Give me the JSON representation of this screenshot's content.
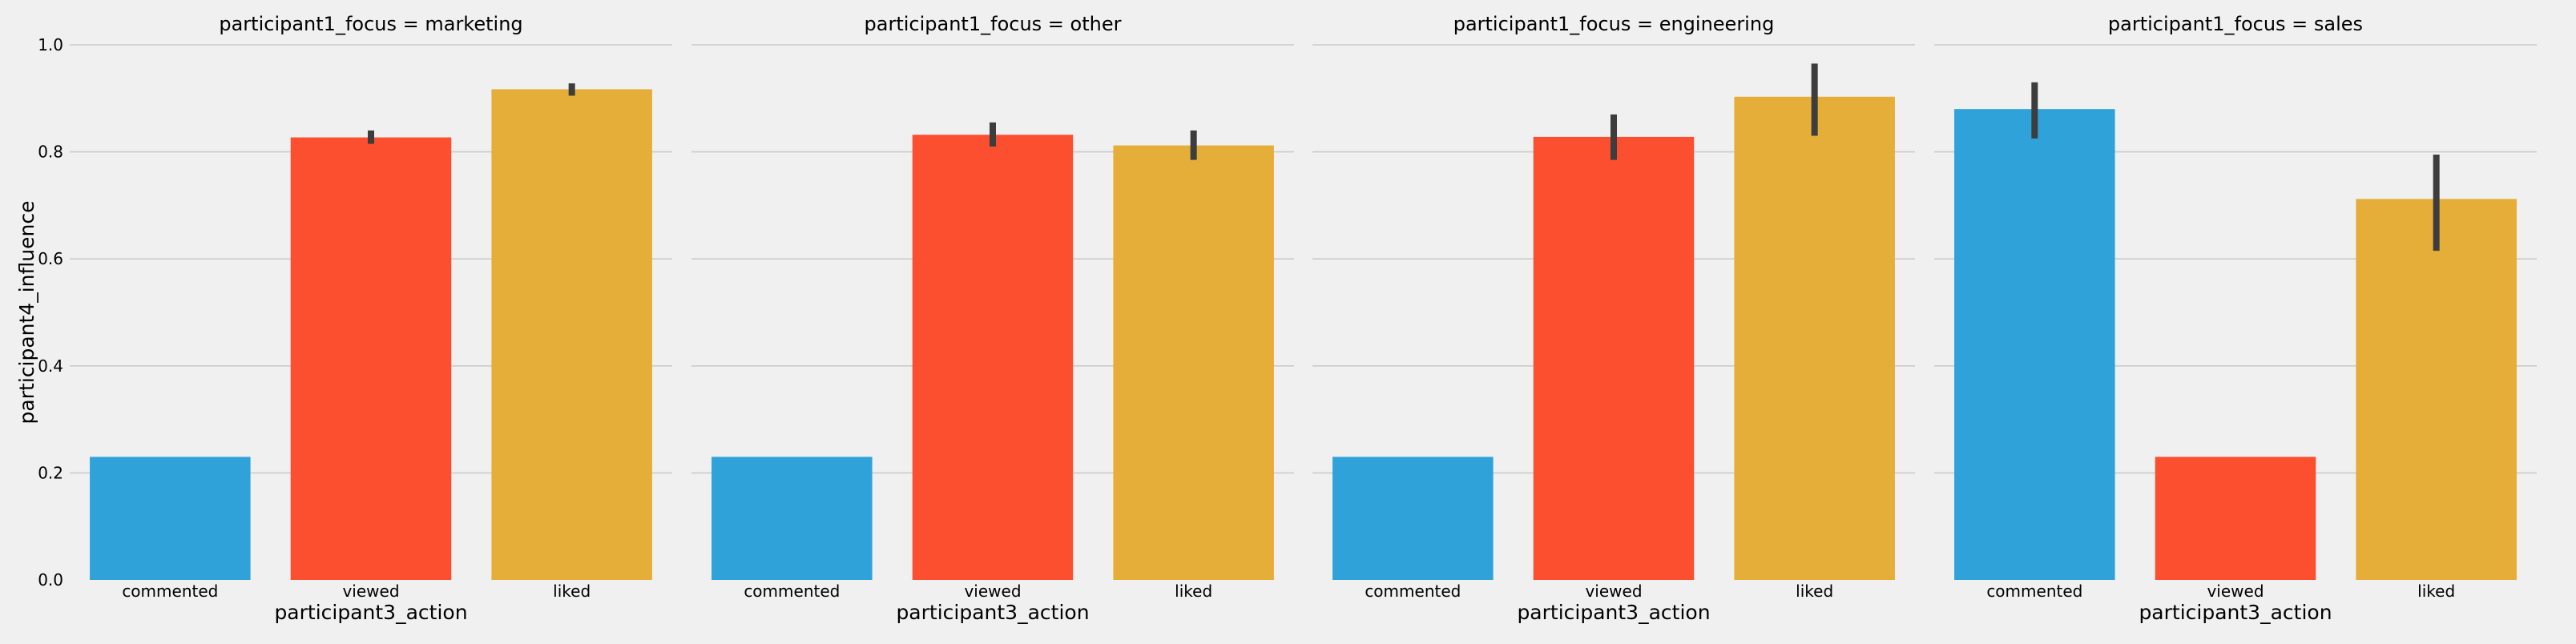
{
  "chart_data": {
    "type": "bar",
    "layout": "facet-grid",
    "facet_title_prefix": "participant1_focus = ",
    "xlabel": "participant3_action",
    "ylabel": "participant4_influence",
    "ylim": [
      0,
      1.0
    ],
    "yticks": [
      0.0,
      0.2,
      0.4,
      0.6,
      0.8,
      1.0
    ],
    "ytick_labels": [
      "0.0",
      "0.2",
      "0.4",
      "0.6",
      "0.8",
      "1.0"
    ],
    "grid": true,
    "colors": {
      "background": "#f0f0f0",
      "grid": "#cbcbcb",
      "errorbar": "#3d3d3d",
      "bar_colors": [
        "#30a2da",
        "#fc4f30",
        "#e5ae38"
      ]
    },
    "facets": [
      {
        "focus": "marketing",
        "title": "participant1_focus = marketing",
        "categories": [
          "commented",
          "viewed",
          "liked"
        ],
        "values": [
          0.23,
          0.827,
          0.917
        ],
        "error_low": [
          null,
          0.815,
          0.905
        ],
        "error_high": [
          null,
          0.84,
          0.928
        ],
        "bar_color_index": [
          0,
          1,
          2
        ]
      },
      {
        "focus": "other",
        "title": "participant1_focus = other",
        "categories": [
          "commented",
          "viewed",
          "liked"
        ],
        "values": [
          0.23,
          0.832,
          0.812
        ],
        "error_low": [
          null,
          0.81,
          0.785
        ],
        "error_high": [
          null,
          0.855,
          0.84
        ],
        "bar_color_index": [
          0,
          1,
          2
        ]
      },
      {
        "focus": "engineering",
        "title": "participant1_focus = engineering",
        "categories": [
          "commented",
          "viewed",
          "liked"
        ],
        "values": [
          0.23,
          0.828,
          0.903
        ],
        "error_low": [
          null,
          0.785,
          0.83
        ],
        "error_high": [
          null,
          0.87,
          0.965
        ],
        "bar_color_index": [
          0,
          1,
          2
        ]
      },
      {
        "focus": "sales",
        "title": "participant1_focus = sales",
        "categories": [
          "commented",
          "viewed",
          "liked"
        ],
        "values": [
          0.88,
          0.23,
          0.712
        ],
        "error_low": [
          0.825,
          null,
          0.615
        ],
        "error_high": [
          0.93,
          null,
          0.795
        ],
        "bar_color_index": [
          0,
          1,
          2
        ]
      }
    ]
  }
}
